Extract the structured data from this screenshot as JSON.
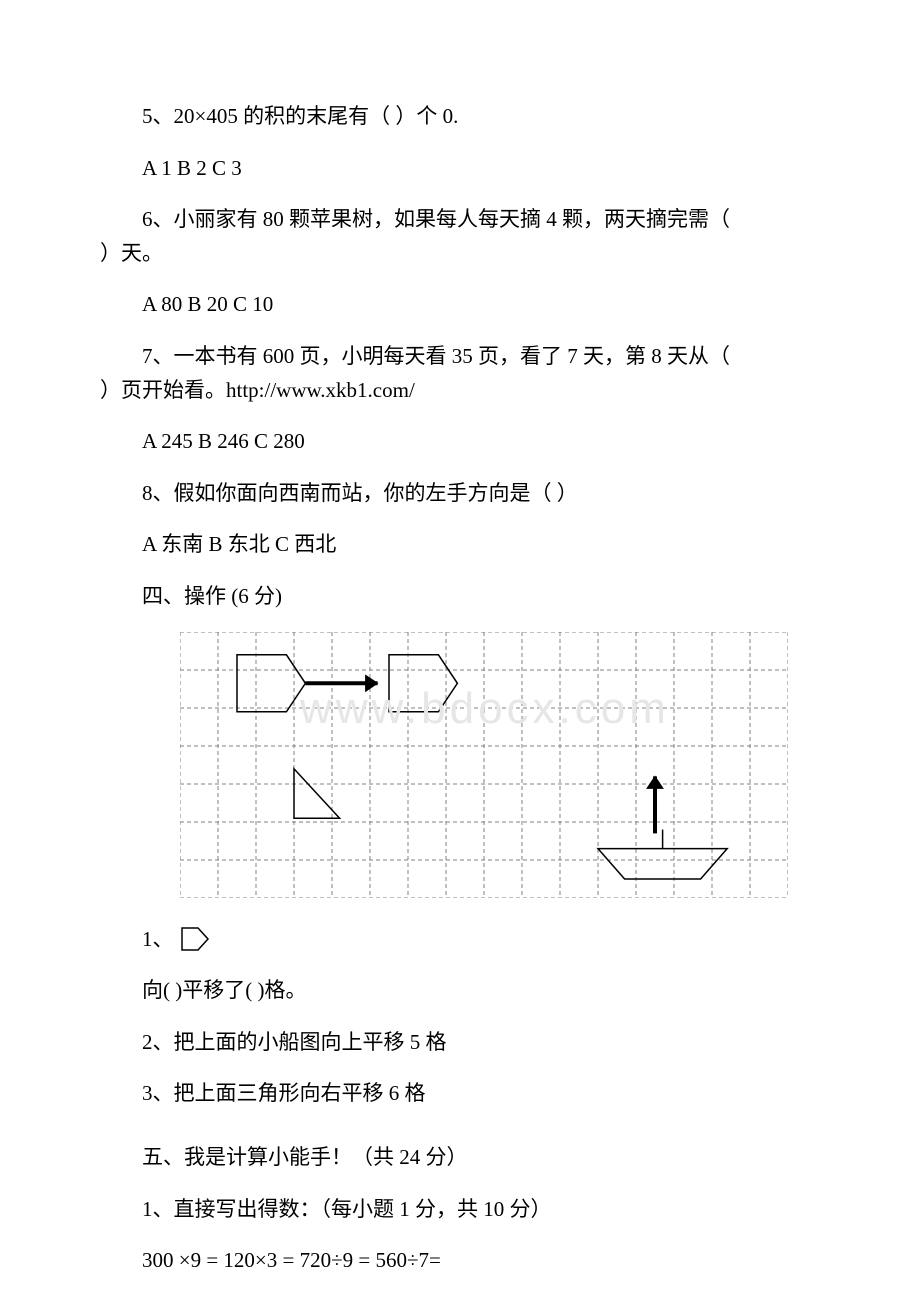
{
  "q5": {
    "text": "5、20×405 的积的末尾有（ ）个 0.",
    "options": "A 1   B 2   C 3"
  },
  "q6": {
    "text_line1": "6、小丽家有 80 颗苹果树，如果每人每天摘 4 颗，两天摘完需（",
    "text_line2": "）天。",
    "options": "A 80 B 20 C 10"
  },
  "q7": {
    "text_line1": "7、一本书有 600 页，小明每天看 35 页，看了 7 天，第 8 天从（",
    "text_line2": "）页开始看。http://www.xkb1.com/",
    "options": "A 245 B 246 C 280"
  },
  "q8": {
    "text": "8、假如你面向西南而站，你的左手方向是（ ）",
    "options": "A 东南 B 东北 C 西北"
  },
  "section4_title": "四、操作 (6 分)",
  "watermark_text": "www.bdocx.com",
  "grid": {
    "cols": 16,
    "rows": 7,
    "cell": 38,
    "stroke": "#808080",
    "dash": "4,3",
    "shape_stroke": "#000000",
    "shape_stroke_width": 1.5,
    "arrow_fill": "#000000",
    "pentagon1": {
      "col": 1.5,
      "row": 0.6
    },
    "pentagon2": {
      "col": 5.5,
      "row": 0.6
    },
    "arrow1": {
      "from_col": 3.3,
      "from_row": 1.35,
      "to_col": 5.2,
      "to_row": 1.35
    },
    "triangle": {
      "col": 3,
      "row": 3.6
    },
    "boat": {
      "col": 11,
      "row": 5.7
    },
    "arrow2": {
      "from_col": 12.5,
      "from_row": 5.3,
      "to_col": 12.5,
      "to_row": 3.8
    }
  },
  "small_pentagon_label": "1、",
  "q4_1": "向(    )平移了(    )格。",
  "q4_2": "2、把上面的小船图向上平移 5 格",
  "q4_3": "3、把上面三角形向右平移 6 格",
  "section5_title": "五、我是计算小能手！（共 24 分）",
  "s5_1": "1、直接写出得数：（每小题 1 分，共 10 分）",
  "s5_eq": "300 ×9 = 120×3 = 720÷9 = 560÷7="
}
